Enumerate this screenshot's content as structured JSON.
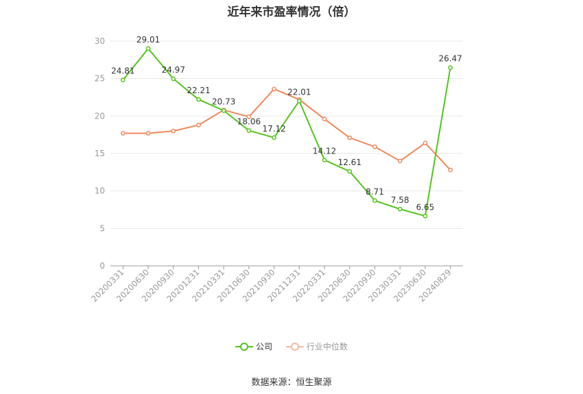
{
  "chart_data": {
    "type": "line",
    "title": "近年来市盈率情况（倍）",
    "categories": [
      "20200331",
      "20200630",
      "20200930",
      "20201231",
      "20210331",
      "20210630",
      "20210930",
      "20211231",
      "20220331",
      "20220630",
      "20220930",
      "20230331",
      "20230630",
      "20240829"
    ],
    "ylim": [
      0,
      30
    ],
    "yticks": [
      0,
      5,
      10,
      15,
      20,
      25,
      30
    ],
    "grid": true,
    "legend_position": "bottom",
    "series": [
      {
        "name": "公司",
        "color": "#52c41a",
        "values": [
          24.81,
          29.01,
          24.97,
          22.21,
          20.73,
          18.06,
          17.12,
          22.01,
          14.12,
          12.61,
          8.71,
          7.58,
          6.65,
          26.47
        ],
        "labels": [
          "24.81",
          "29.01",
          "24.97",
          "22.21",
          "20.73",
          "18.06",
          "17.12",
          "22.01",
          "14.12",
          "12.61",
          "8.71",
          "7.58",
          "6.65",
          "26.47"
        ]
      },
      {
        "name": "行业中位数",
        "color": "#f0885a",
        "values": [
          17.7,
          17.7,
          18.0,
          18.8,
          20.8,
          19.9,
          23.6,
          22.2,
          19.6,
          17.1,
          15.9,
          14.0,
          16.4,
          12.8
        ]
      }
    ]
  },
  "footer": {
    "source": "数据来源：恒生聚源"
  }
}
